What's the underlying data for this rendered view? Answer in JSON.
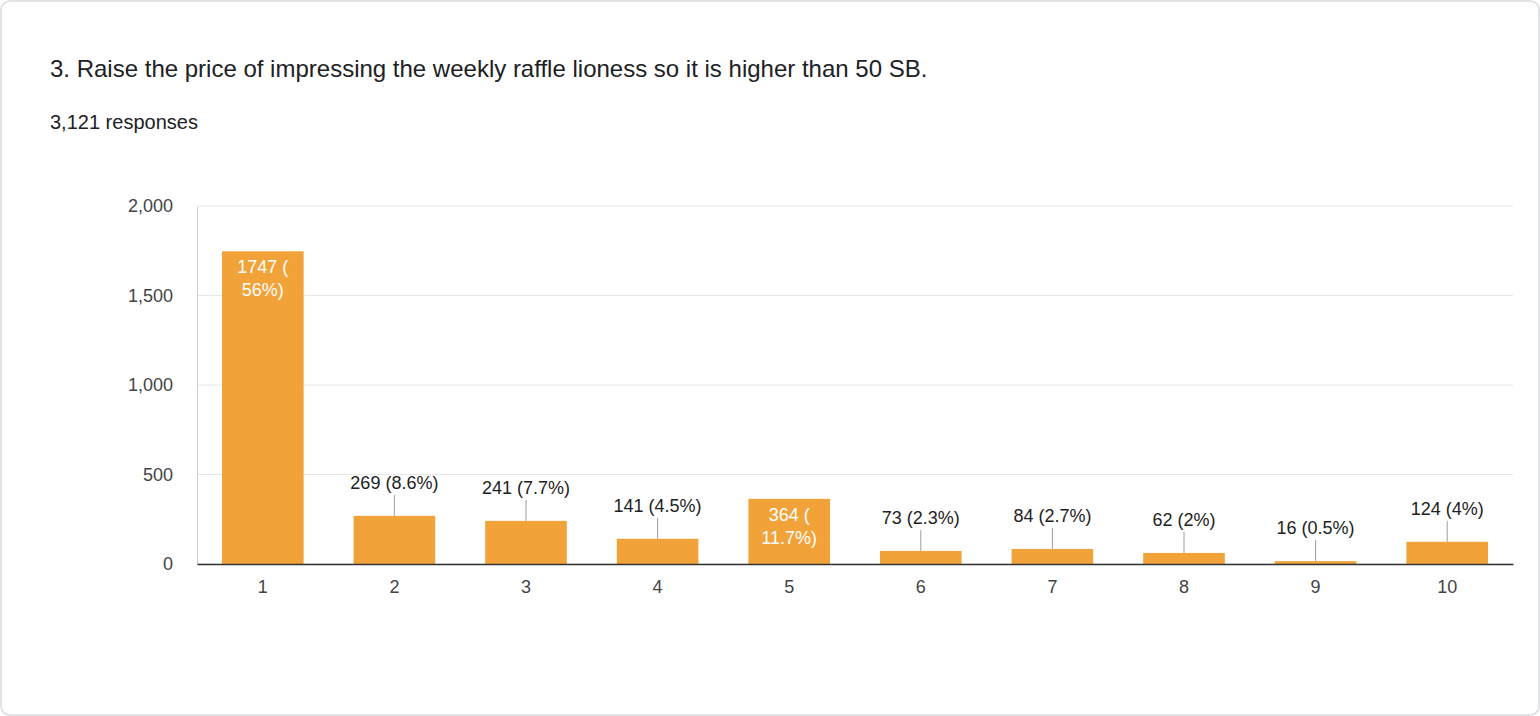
{
  "chart_data": {
    "type": "bar",
    "title": "3. Raise the price of impressing the weekly raffle lioness so it is higher than 50 SB.",
    "subtitle": "3,121 responses",
    "categories": [
      "1",
      "2",
      "3",
      "4",
      "5",
      "6",
      "7",
      "8",
      "9",
      "10"
    ],
    "values": [
      1747,
      269,
      241,
      141,
      364,
      73,
      84,
      62,
      16,
      124
    ],
    "value_labels": [
      "1747 (56%)",
      "269 (8.6%)",
      "241 (7.7%)",
      "141 (4.5%)",
      "364 (11.7%)",
      "73 (2.3%)",
      "84 (2.7%)",
      "62 (2%)",
      "16 (0.5%)",
      "124 (4%)"
    ],
    "color": "#f1a33a",
    "ylim": [
      0,
      2000
    ],
    "yticks": [
      0,
      500,
      {
        "value": 1000,
        "label": "1,000"
      },
      {
        "value": 1500,
        "label": "1,500"
      },
      {
        "value": 2000,
        "label": "2,000"
      }
    ],
    "grid": true,
    "data_labels": true
  }
}
